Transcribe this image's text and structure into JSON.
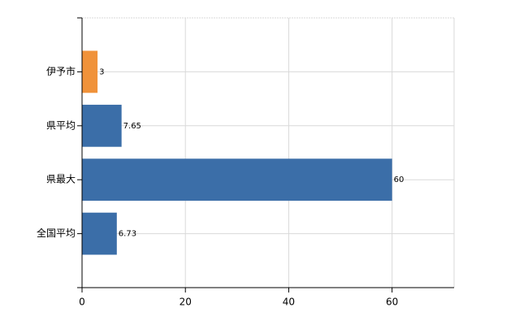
{
  "chart_data": {
    "type": "bar",
    "orientation": "horizontal",
    "categories": [
      "伊予市",
      "県平均",
      "県最大",
      "全国平均"
    ],
    "values": [
      3,
      7.65,
      60,
      6.73
    ],
    "colors": [
      "#f0923a",
      "#3b6ea8",
      "#3b6ea8",
      "#3b6ea8"
    ],
    "xlim": [
      0,
      72
    ],
    "xticks": [
      0,
      20,
      40,
      60
    ],
    "grid": true
  }
}
